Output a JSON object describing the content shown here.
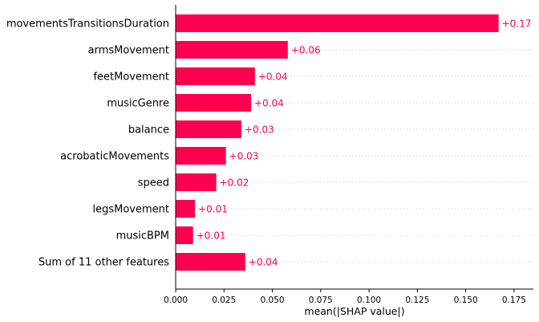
{
  "chart_data": {
    "type": "bar",
    "orientation": "horizontal",
    "categories": [
      "movementsTransitionsDuration",
      "armsMovement",
      "feetMovement",
      "musicGenre",
      "balance",
      "acrobaticMovements",
      "speed",
      "legsMovement",
      "musicBPM",
      "Sum of 11 other features"
    ],
    "values": [
      0.167,
      0.058,
      0.041,
      0.039,
      0.034,
      0.026,
      0.021,
      0.01,
      0.009,
      0.036
    ],
    "value_labels": [
      "+0.17",
      "+0.06",
      "+0.04",
      "+0.04",
      "+0.03",
      "+0.03",
      "+0.02",
      "+0.01",
      "+0.01",
      "+0.04"
    ],
    "xlabel": "mean(|SHAP value|)",
    "ylabel": "",
    "title": "",
    "xlim": [
      0,
      0.185
    ],
    "xticks": [
      "0.000",
      "0.025",
      "0.050",
      "0.075",
      "0.100",
      "0.125",
      "0.150",
      "0.175"
    ],
    "xtick_values": [
      0,
      0.025,
      0.05,
      0.075,
      0.1,
      0.125,
      0.15,
      0.175
    ],
    "horizontal_grid": "dotted",
    "colors": {
      "bar": "#ff0051",
      "value_text": "#ff0051",
      "grid": "#cccccc",
      "axis": "#000000"
    }
  }
}
